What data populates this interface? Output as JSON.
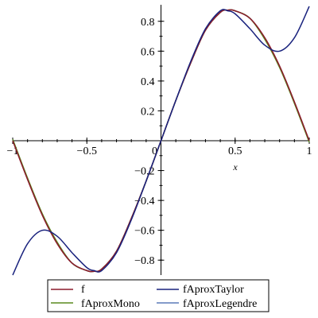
{
  "chart_data": {
    "type": "line",
    "xlabel": "x",
    "ylabel": "",
    "xlim": [
      -1,
      1
    ],
    "ylim": [
      -0.9,
      0.9
    ],
    "grid": false,
    "legend_position": "bottom",
    "x_ticks": [
      -1,
      -0.5,
      0,
      0.5,
      1
    ],
    "x_tick_labels": [
      "−1",
      "−0.5",
      "0",
      "0.5",
      "1"
    ],
    "y_ticks": [
      -0.8,
      -0.6,
      -0.4,
      -0.2,
      0.2,
      0.4,
      0.6,
      0.8
    ],
    "y_tick_labels": [
      "−0.8",
      "−0.6",
      "−0.4",
      "−0.2",
      "0.2",
      "0.4",
      "0.6",
      "0.8"
    ],
    "x": [
      -1,
      -0.9,
      -0.8,
      -0.7,
      -0.6,
      -0.5,
      -0.45,
      -0.4,
      -0.3,
      -0.2,
      -0.1,
      0,
      0.1,
      0.2,
      0.3,
      0.4,
      0.45,
      0.5,
      0.6,
      0.7,
      0.8,
      0.9,
      1
    ],
    "series": [
      {
        "name": "f",
        "color": "#8b1a2b",
        "values": [
          0,
          -0.26,
          -0.5,
          -0.69,
          -0.82,
          -0.87,
          -0.875,
          -0.86,
          -0.74,
          -0.52,
          -0.27,
          0,
          0.27,
          0.52,
          0.74,
          0.86,
          0.875,
          0.87,
          0.82,
          0.69,
          0.5,
          0.26,
          0
        ]
      },
      {
        "name": "fAproxMono",
        "color": "#5a8a1e",
        "values": [
          0.01,
          -0.25,
          -0.49,
          -0.68,
          -0.82,
          -0.87,
          -0.875,
          -0.86,
          -0.74,
          -0.52,
          -0.27,
          0,
          0.27,
          0.52,
          0.74,
          0.86,
          0.875,
          0.87,
          0.82,
          0.68,
          0.49,
          0.25,
          -0.01
        ]
      },
      {
        "name": "fAproxTaylor",
        "color": "#1a237e",
        "values": [
          -0.9,
          -0.69,
          -0.6,
          -0.64,
          -0.75,
          -0.85,
          -0.87,
          -0.87,
          -0.75,
          -0.53,
          -0.27,
          0,
          0.27,
          0.53,
          0.75,
          0.87,
          0.87,
          0.85,
          0.75,
          0.64,
          0.6,
          0.69,
          0.9
        ]
      },
      {
        "name": "fAproxLegendre",
        "color": "#5c7ab8",
        "values": [
          0.005,
          -0.255,
          -0.495,
          -0.685,
          -0.82,
          -0.87,
          -0.875,
          -0.86,
          -0.74,
          -0.52,
          -0.27,
          0,
          0.27,
          0.52,
          0.74,
          0.86,
          0.875,
          0.87,
          0.82,
          0.685,
          0.495,
          0.255,
          -0.005
        ]
      }
    ]
  }
}
